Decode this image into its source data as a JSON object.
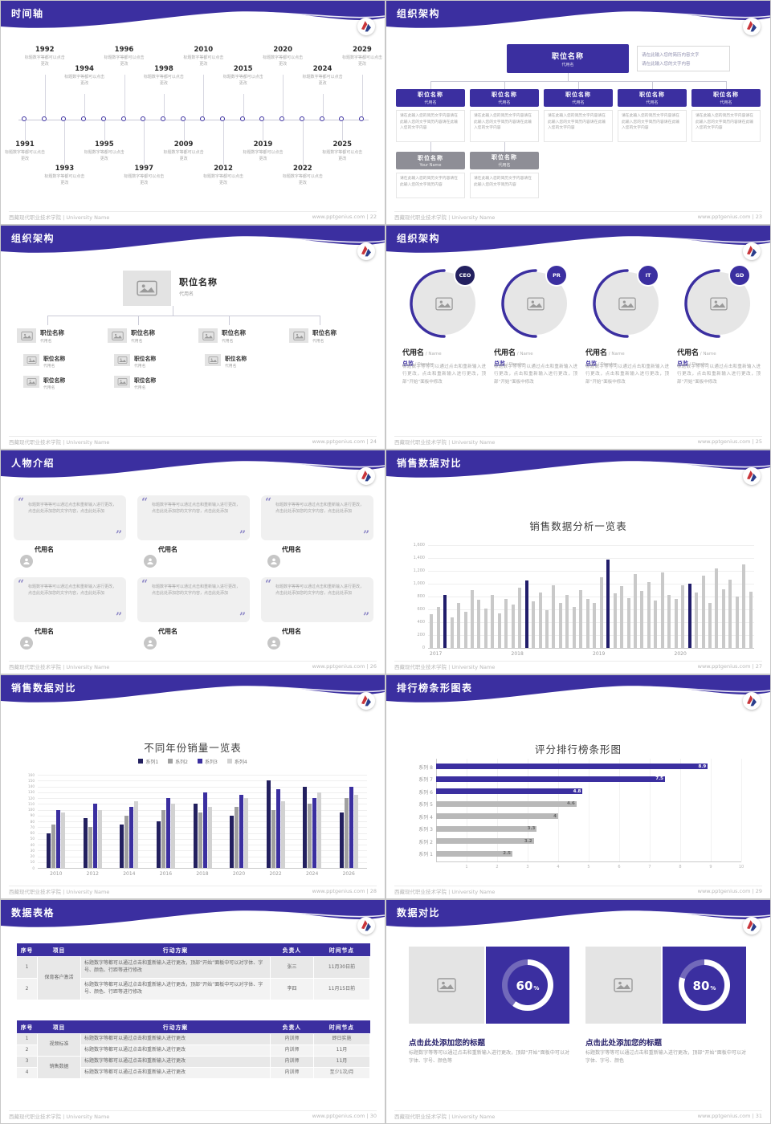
{
  "meta": {
    "school_footer": "西藏现代职业技术学院 | University Name",
    "theme": {
      "purple": "#3b2fa0",
      "navy": "#23205f",
      "gray_bar": "#c9c9c9"
    }
  },
  "slides": [
    {
      "page": "22",
      "title": "时间轴",
      "kind": "timeline",
      "footer_right": "www.pptgenius.com | 22",
      "timeline": {
        "desc": "标题数字等都可以点击更改",
        "items": [
          {
            "year": "1991",
            "pos": "below"
          },
          {
            "year": "1992",
            "pos": "above"
          },
          {
            "year": "1993",
            "pos": "below"
          },
          {
            "year": "1994",
            "pos": "above"
          },
          {
            "year": "1995",
            "pos": "below"
          },
          {
            "year": "1996",
            "pos": "above"
          },
          {
            "year": "1997",
            "pos": "below"
          },
          {
            "year": "1998",
            "pos": "above"
          },
          {
            "year": "2009",
            "pos": "below"
          },
          {
            "year": "2010",
            "pos": "above"
          },
          {
            "year": "2012",
            "pos": "below"
          },
          {
            "year": "2015",
            "pos": "above"
          },
          {
            "year": "2019",
            "pos": "below"
          },
          {
            "year": "2020",
            "pos": "above"
          },
          {
            "year": "2022",
            "pos": "below"
          },
          {
            "year": "2024",
            "pos": "above"
          },
          {
            "year": "2025",
            "pos": "below"
          },
          {
            "year": "2029",
            "pos": "above"
          }
        ]
      }
    },
    {
      "page": "23",
      "title": "组织架构",
      "kind": "org1",
      "footer_right": "www.pptgenius.com | 23",
      "org": {
        "root": {
          "label": "职位名称",
          "sub": "代用名"
        },
        "root_note": [
          "请在此输入您的简历内容文字",
          "请在此输入您的文字内容"
        ],
        "level1": {
          "label": "职位名称",
          "sub": "代用名",
          "count": 5,
          "note": "请在此输入您的简历文字内容请在此输入您的文字简历内容请在此输入您的文字内容"
        },
        "level2": [
          {
            "label": "职位名称",
            "sub": "Your Name"
          },
          {
            "label": "职位名称",
            "sub": "代用名"
          }
        ],
        "level2_note": "请在此输入您的简历文字内容请在此输入您的文字简历内容"
      }
    },
    {
      "page": "24",
      "title": "组织架构",
      "kind": "org2",
      "footer_right": "www.pptgenius.com | 24",
      "org": {
        "root": {
          "label": "职位名称",
          "sub": "代用名"
        },
        "branch": {
          "label": "职位名称",
          "sub": "代用名"
        },
        "children_counts": [
          2,
          2,
          1,
          0
        ]
      }
    },
    {
      "page": "25",
      "title": "组织架构",
      "kind": "profiles",
      "footer_right": "www.pptgenius.com | 25",
      "profiles": {
        "badges": [
          "CEO",
          "PR",
          "IT",
          "GD"
        ],
        "name": "代用名",
        "name_suffix": "/ Name",
        "role": "总监",
        "role_suffix": "/ Director",
        "desc": "标题数字等等可以通过点击和重新输入进行更改，点击和重新输入进行更改，顶部“开始”面板中修改"
      }
    },
    {
      "page": "26",
      "title": "人物介绍",
      "kind": "people",
      "footer_right": "www.pptgenius.com | 26",
      "people": {
        "name": "代用名",
        "count": 6,
        "quote": "标题数字等等可以通过点击和重新输入进行更改，点击此处添加您的文字内容，点击此处添加"
      }
    },
    {
      "page": "27",
      "title": "销售数据对比",
      "kind": "chart-mono",
      "footer_right": "www.pptgenius.com | 27"
    },
    {
      "page": "28",
      "title": "销售数据对比",
      "kind": "chart-group",
      "footer_right": "www.pptgenius.com | 28"
    },
    {
      "page": "29",
      "title": "排行榜条形图表",
      "kind": "chart-hbar",
      "footer_right": "www.pptgenius.com | 29"
    },
    {
      "page": "30",
      "title": "数据表格",
      "kind": "tables",
      "footer_right": "www.pptgenius.com | 30",
      "tables": {
        "headers": [
          "序号",
          "项目",
          "行动方案",
          "负责人",
          "时间节点"
        ],
        "table1": {
          "project": "保育客户激活",
          "rows": [
            {
              "no": "1",
              "plan": "标题数字等都可以通过点击和重新输入进行更改，顶部“开始”面板中可以对字体、字号、颜色、行距等进行修改",
              "owner": "张三",
              "deadline": "11月30日前"
            },
            {
              "no": "2",
              "plan": "标题数字等都可以通过点击和重新输入进行更改，顶部“开始”面板中可以对字体、字号、颜色、行距等进行修改",
              "owner": "李四",
              "deadline": "11月15日前"
            }
          ]
        },
        "table2": {
          "groups": [
            {
              "project": "视频标准",
              "span": 2
            },
            {
              "project": "销售数据",
              "span": 2
            }
          ],
          "rows": [
            {
              "no": "1",
              "plan": "标题数字等都可以通过点击和重新输入进行更改",
              "owner": "内训师",
              "deadline": "即日实施"
            },
            {
              "no": "2",
              "plan": "标题数字等都可以通过点击和重新输入进行更改",
              "owner": "内训师",
              "deadline": "11月"
            },
            {
              "no": "3",
              "plan": "标题数字等都可以通过点击和重新输入进行更改",
              "owner": "内训师",
              "deadline": "11月"
            },
            {
              "no": "4",
              "plan": "标题数字等都可以通过点击和重新输入进行更改",
              "owner": "内训师",
              "deadline": "至少1次/月"
            }
          ]
        }
      }
    },
    {
      "page": "31",
      "title": "数据对比",
      "kind": "compare",
      "footer_right": "www.pptgenius.com | 31",
      "compare": {
        "items": [
          {
            "percent": 60,
            "heading": "点击此处添加您的标题",
            "desc": "标题数字等等可以通过点击和重新输入进行更改，顶部“开始”面板中可以对字体、字号、颜色等"
          },
          {
            "percent": 80,
            "heading": "点击此处添加您的标题",
            "desc": "标题数字等等可以通过点击和重新输入进行更改，顶部“开始”面板中可以对字体、字号、颜色"
          }
        ]
      }
    }
  ],
  "chart_data": [
    {
      "type": "bar",
      "title": "销售数据分析一览表",
      "categories": [
        "2017",
        "2018",
        "2019",
        "2020"
      ],
      "bars_per_category": 12,
      "values": [
        520,
        640,
        820,
        470,
        700,
        560,
        900,
        750,
        610,
        830,
        540,
        760,
        680,
        940,
        1050,
        720,
        860,
        590,
        980,
        700,
        820,
        640,
        900,
        760,
        700,
        1100,
        1380,
        850,
        960,
        780,
        1150,
        890,
        1020,
        740,
        1180,
        820,
        760,
        980,
        1000,
        860,
        1120,
        700,
        1240,
        910,
        1060,
        800,
        1300,
        880
      ],
      "highlight_indices": [
        2,
        14,
        26,
        38
      ],
      "highlight_color": "#211d6b",
      "bar_color": "#c9c9c9",
      "ylim": [
        0,
        1600
      ],
      "ytick_step": 200,
      "grid": true,
      "legend_position": "none"
    },
    {
      "type": "grouped-bar",
      "title": "不同年份销量一览表",
      "categories": [
        "2010",
        "2012",
        "2014",
        "2016",
        "2018",
        "2020",
        "2022",
        "2024",
        "2026"
      ],
      "series": [
        {
          "name": "系列1",
          "color": "#23205f",
          "values": [
            60,
            85,
            75,
            80,
            110,
            90,
            150,
            140,
            95
          ]
        },
        {
          "name": "系列2",
          "color": "#a0a0a0",
          "values": [
            75,
            70,
            90,
            100,
            95,
            105,
            100,
            110,
            120
          ]
        },
        {
          "name": "系列3",
          "color": "#3b2fa0",
          "values": [
            100,
            110,
            105,
            120,
            130,
            125,
            135,
            120,
            140
          ]
        },
        {
          "name": "系列4",
          "color": "#d2d2d2",
          "values": [
            95,
            100,
            115,
            110,
            105,
            120,
            115,
            130,
            125
          ]
        }
      ],
      "ylim": [
        0,
        160
      ],
      "ytick_step": 10,
      "grid": true,
      "legend_position": "top"
    },
    {
      "type": "hbar",
      "title": "评分排行榜条形图",
      "categories": [
        "系列 8",
        "系列 7",
        "系列 6",
        "系列 5",
        "系列 4",
        "系列 3",
        "系列 2",
        "系列 1"
      ],
      "values": [
        8.9,
        7.5,
        4.8,
        4.6,
        4,
        3.3,
        3.2,
        2.5
      ],
      "colors": [
        "#3b2fa0",
        "#3b2fa0",
        "#3b2fa0",
        "#b9b9b9",
        "#b9b9b9",
        "#b9b9b9",
        "#b9b9b9",
        "#b9b9b9"
      ],
      "xlim": [
        0,
        10
      ],
      "xticks": [
        1,
        2,
        3,
        4,
        5,
        6,
        7,
        8,
        9,
        10
      ],
      "grid": true
    }
  ]
}
